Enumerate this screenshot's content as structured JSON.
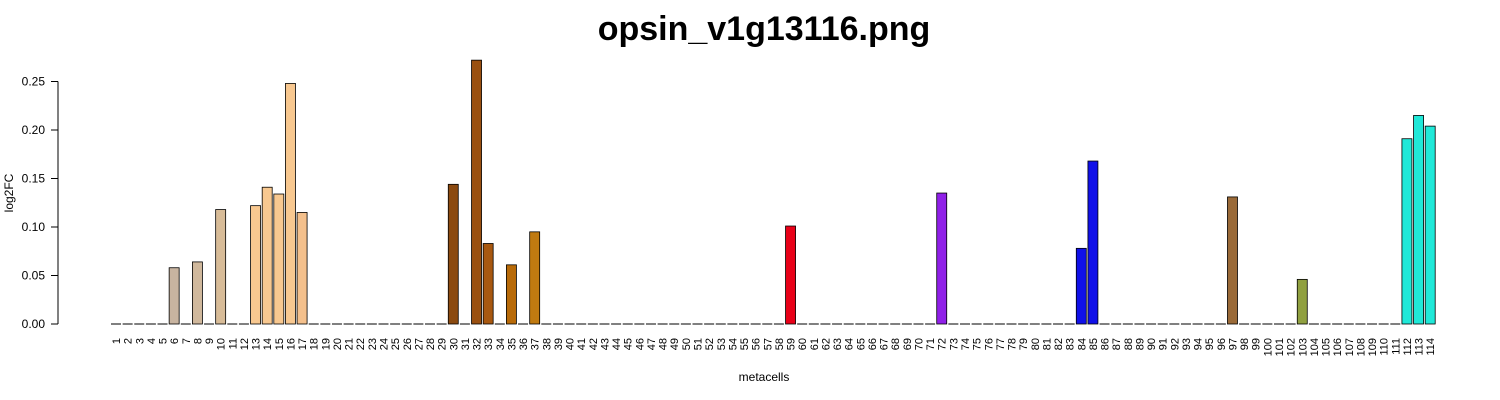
{
  "chart_data": {
    "type": "bar",
    "title": "opsin_v1g13116.png",
    "xlabel": "metacells",
    "ylabel": "log2FC",
    "ylim": [
      0,
      0.27
    ],
    "yticks": [
      "0.00",
      "0.05",
      "0.10",
      "0.15",
      "0.20",
      "0.25"
    ],
    "grid": false,
    "categories": [
      "1",
      "2",
      "3",
      "4",
      "5",
      "6",
      "7",
      "8",
      "9",
      "10",
      "11",
      "12",
      "13",
      "14",
      "15",
      "16",
      "17",
      "18",
      "19",
      "20",
      "21",
      "22",
      "23",
      "24",
      "25",
      "26",
      "27",
      "28",
      "29",
      "30",
      "31",
      "32",
      "33",
      "34",
      "35",
      "36",
      "37",
      "38",
      "39",
      "40",
      "41",
      "42",
      "43",
      "44",
      "45",
      "46",
      "47",
      "48",
      "49",
      "50",
      "51",
      "52",
      "53",
      "54",
      "55",
      "56",
      "57",
      "58",
      "59",
      "60",
      "61",
      "62",
      "63",
      "64",
      "65",
      "66",
      "67",
      "68",
      "69",
      "70",
      "71",
      "72",
      "73",
      "74",
      "75",
      "76",
      "77",
      "78",
      "79",
      "80",
      "81",
      "82",
      "83",
      "84",
      "85",
      "86",
      "87",
      "88",
      "89",
      "90",
      "91",
      "92",
      "93",
      "94",
      "95",
      "96",
      "97",
      "98",
      "99",
      "100",
      "101",
      "102",
      "103",
      "104",
      "105",
      "106",
      "107",
      "108",
      "109",
      "110",
      "111",
      "112",
      "113",
      "114"
    ],
    "values": [
      0,
      0,
      0,
      0,
      0,
      0.058,
      0,
      0.064,
      0,
      0.118,
      0,
      0,
      0.122,
      0.141,
      0.134,
      0.248,
      0.115,
      0,
      0,
      0,
      0,
      0,
      0,
      0,
      0,
      0,
      0,
      0,
      0,
      0.144,
      0,
      0.272,
      0.083,
      0,
      0.061,
      0,
      0.095,
      0,
      0,
      0,
      0,
      0,
      0,
      0,
      0,
      0,
      0,
      0,
      0,
      0,
      0,
      0,
      0,
      0,
      0,
      0,
      0,
      0,
      0.101,
      0,
      0,
      0,
      0,
      0,
      0,
      0,
      0,
      0,
      0,
      0,
      0,
      0.135,
      0,
      0,
      0,
      0,
      0,
      0,
      0,
      0,
      0,
      0,
      0,
      0.078,
      0.168,
      0,
      0,
      0,
      0,
      0,
      0,
      0,
      0,
      0,
      0,
      0,
      0.131,
      0,
      0,
      0,
      0,
      0,
      0.046,
      0,
      0,
      0,
      0,
      0,
      0,
      0,
      0,
      0.191,
      0.215,
      0.204
    ],
    "colors": [
      "#c8b4a0",
      "#c8b4a0",
      "#c8b4a0",
      "#c8b4a0",
      "#c8b4a0",
      "#c8b4a0",
      "#d0b89c",
      "#d0b89c",
      "#d8bc98",
      "#d8bc98",
      "#f0c890",
      "#f0c890",
      "#f8c890",
      "#f8c890",
      "#f8c890",
      "#f8c890",
      "#f4c08c",
      "#f4c08c",
      "#f4c08c",
      "#f4c08c",
      "#f4c08c",
      "#f4c08c",
      "#f4c08c",
      "#f4c08c",
      "#f4c08c",
      "#f4c08c",
      "#f4c08c",
      "#f4c08c",
      "#8b4a10",
      "#8b4a10",
      "#9a5010",
      "#9a5010",
      "#a85810",
      "#a85810",
      "#b86a08",
      "#b86a08",
      "#c07a10",
      "#c07a10",
      "#c07a10",
      "#c07a10",
      "#c07a10",
      "#c07a10",
      "#c07a10",
      "#c07a10",
      "#c07a10",
      "#c07a10",
      "#c07a10",
      "#c07a10",
      "#c07a10",
      "#c07a10",
      "#c07a10",
      "#c07a10",
      "#c07a10",
      "#c07a10",
      "#c07a10",
      "#c07a10",
      "#c07a10",
      "#e80018",
      "#e80018",
      "#e80018",
      "#e80018",
      "#e80018",
      "#e80018",
      "#e80018",
      "#e80018",
      "#e80018",
      "#e80018",
      "#e80018",
      "#e80018",
      "#e80018",
      "#9020e8",
      "#9020e8",
      "#9020e8",
      "#9020e8",
      "#9020e8",
      "#9020e8",
      "#9020e8",
      "#9020e8",
      "#9020e8",
      "#9020e8",
      "#9020e8",
      "#9020e8",
      "#1010e8",
      "#1010e8",
      "#1010e8",
      "#1010e8",
      "#1010e8",
      "#1010e8",
      "#1010e8",
      "#1010e8",
      "#1010e8",
      "#1010e8",
      "#1010e8",
      "#1010e8",
      "#1010e8",
      "#9a6a38",
      "#9a6a38",
      "#9a6a38",
      "#9a6a38",
      "#9a6a38",
      "#9a6a38",
      "#90a040",
      "#90a040",
      "#90a040",
      "#90a040",
      "#90a040",
      "#90a040",
      "#90a040",
      "#90a040",
      "#20e8d8",
      "#20e8d8",
      "#20e8d8",
      "#20e8d8",
      "#20e8d8"
    ]
  }
}
